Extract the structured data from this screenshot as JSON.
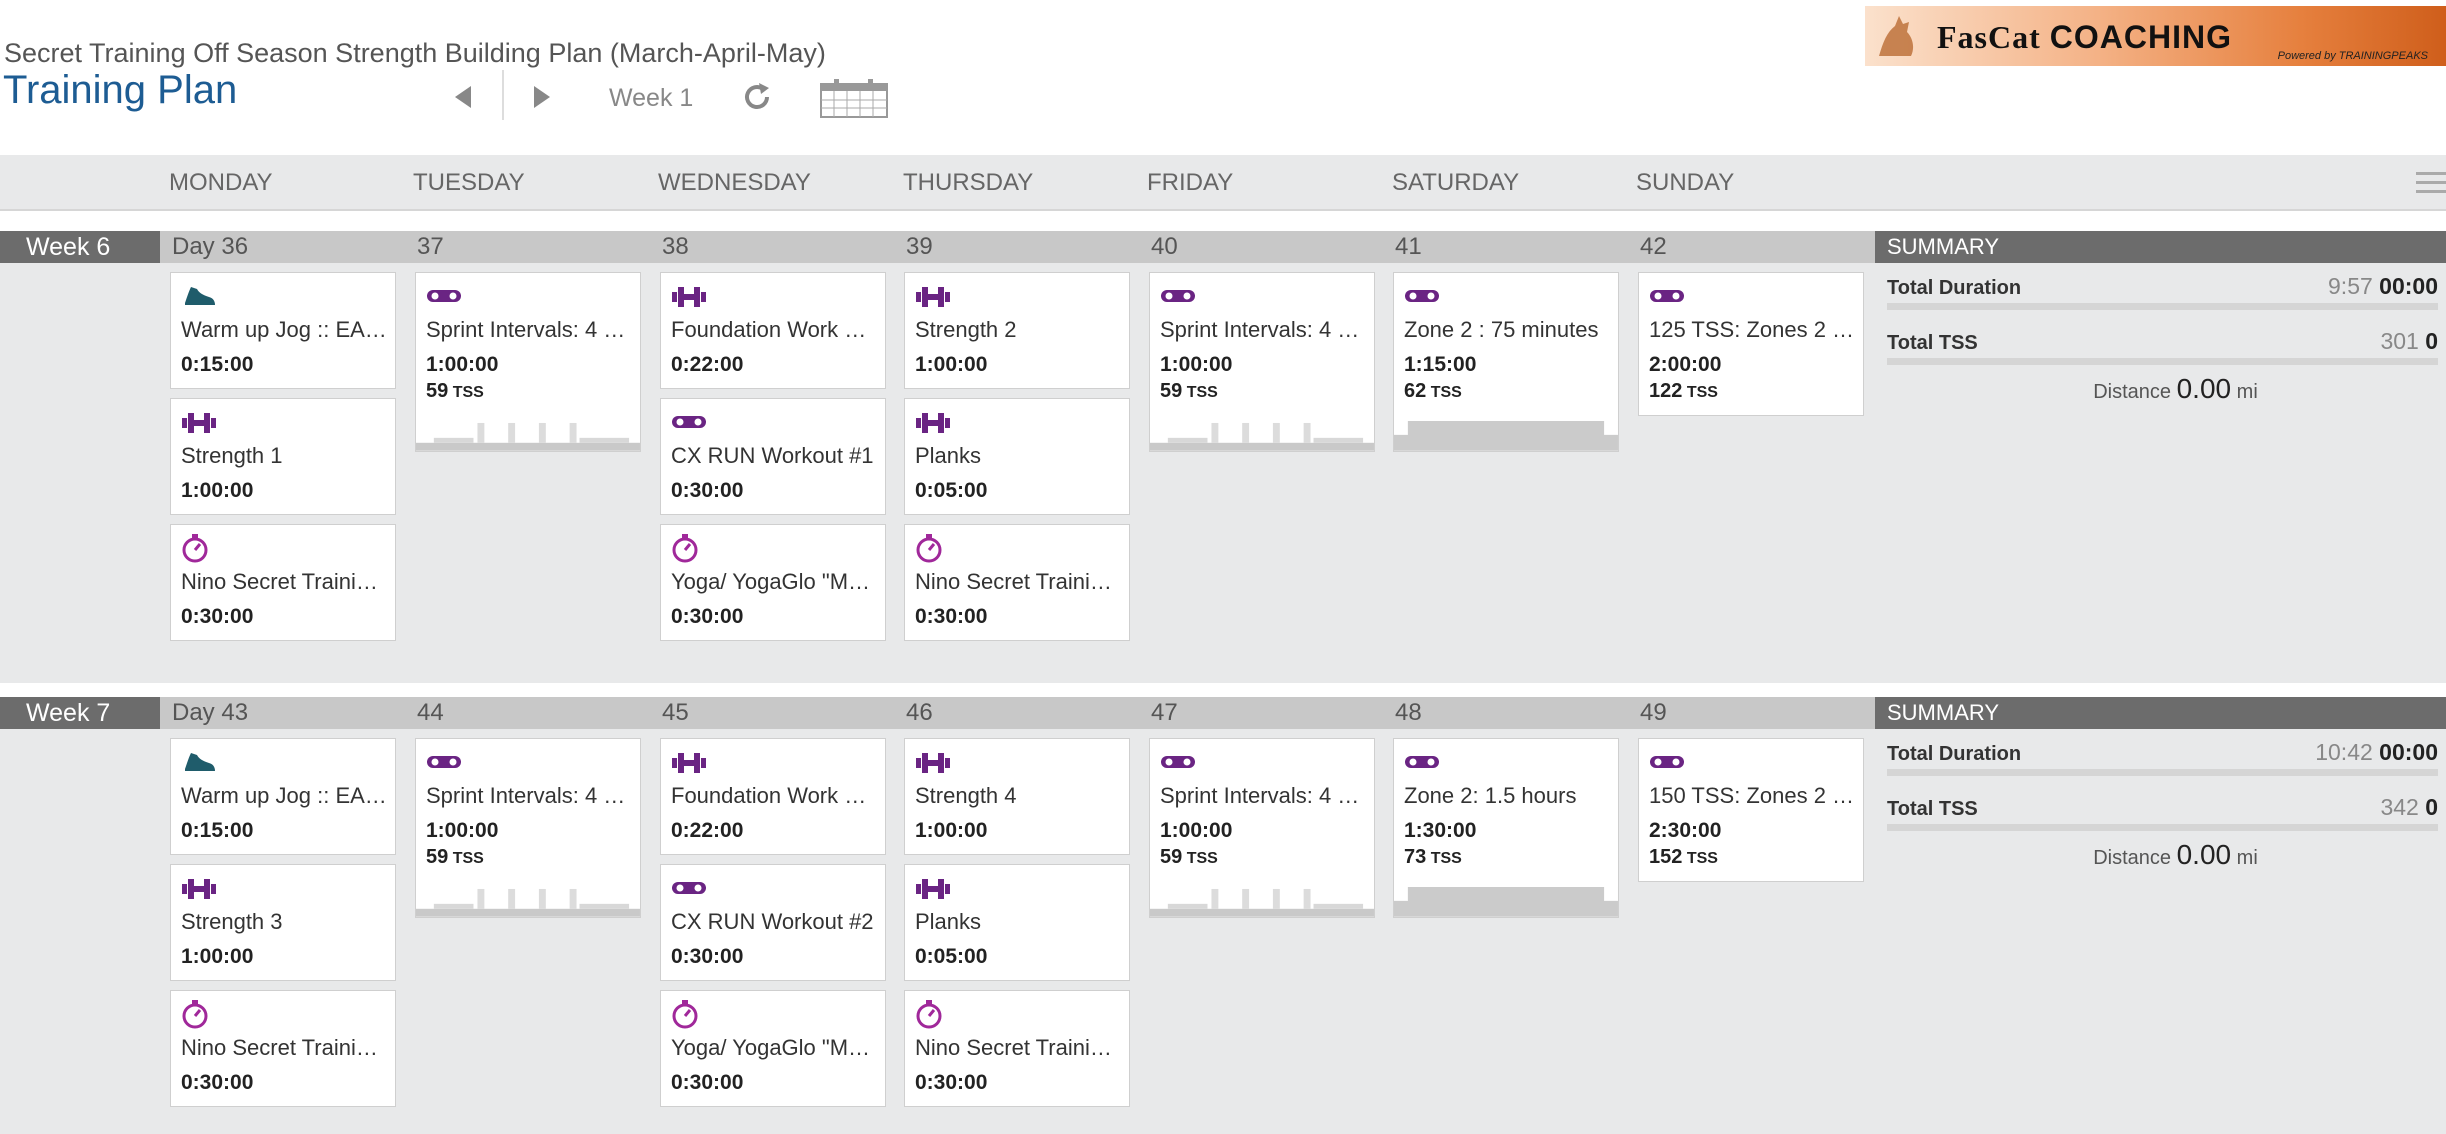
{
  "header": {
    "plan_name": "Secret Training Off Season Strength Building Plan (March-April-May)",
    "title": "Training Plan",
    "week_label": "Week 1"
  },
  "logo": {
    "brand": "FasCat",
    "word": "COACHING",
    "powered": "Powered by TRAININGPEAKS"
  },
  "days": [
    "MONDAY",
    "TUESDAY",
    "WEDNESDAY",
    "THURSDAY",
    "FRIDAY",
    "SATURDAY",
    "SUNDAY"
  ],
  "colors": {
    "accent": "#1d5c93",
    "bike": "#6a2483",
    "run": "#1f5c6b",
    "other": "#a0289a"
  },
  "weeks": [
    {
      "label": "Week 6",
      "day_numbers": [
        "Day 36",
        "37",
        "38",
        "39",
        "40",
        "41",
        "42"
      ],
      "workouts": [
        [
          {
            "icon": "run-shoe-icon",
            "title": "Warm up Jog :: EA…",
            "duration": "0:15:00"
          },
          {
            "icon": "dumbbell-icon",
            "title": "Strength 1",
            "duration": "1:00:00"
          },
          {
            "icon": "stopwatch-icon",
            "title": "Nino Secret Trainin…",
            "duration": "0:30:00"
          }
        ],
        [
          {
            "icon": "bike-icon",
            "title": "Sprint Intervals: 4 …",
            "duration": "1:00:00",
            "tss": "59",
            "profile": "intervals"
          }
        ],
        [
          {
            "icon": "dumbbell-icon",
            "title": "Foundation Work a…",
            "duration": "0:22:00"
          },
          {
            "icon": "bike-icon",
            "title": "CX RUN Workout #1",
            "duration": "0:30:00"
          },
          {
            "icon": "stopwatch-icon",
            "title": "Yoga/ YogaGlo \"M…",
            "duration": "0:30:00"
          }
        ],
        [
          {
            "icon": "dumbbell-icon",
            "title": "Strength 2",
            "duration": "1:00:00"
          },
          {
            "icon": "dumbbell-icon",
            "title": "Planks",
            "duration": "0:05:00"
          },
          {
            "icon": "stopwatch-icon",
            "title": "Nino Secret Trainin…",
            "duration": "0:30:00"
          }
        ],
        [
          {
            "icon": "bike-icon",
            "title": "Sprint Intervals: 4 …",
            "duration": "1:00:00",
            "tss": "59",
            "profile": "intervals"
          }
        ],
        [
          {
            "icon": "bike-icon",
            "title": "Zone 2 : 75 minutes",
            "duration": "1:15:00",
            "tss": "62",
            "profile": "steady"
          }
        ],
        [
          {
            "icon": "bike-icon",
            "title": "125 TSS: Zones 2 …",
            "duration": "2:00:00",
            "tss": "122"
          }
        ]
      ],
      "summary": {
        "heading": "SUMMARY",
        "duration_label": "Total Duration",
        "duration_planned": "9:57",
        "duration_done": "00:00",
        "tss_label": "Total TSS",
        "tss_planned": "301",
        "tss_done": "0",
        "distance_label": "Distance",
        "distance_value": "0.00",
        "distance_unit": "mi"
      }
    },
    {
      "label": "Week 7",
      "day_numbers": [
        "Day 43",
        "44",
        "45",
        "46",
        "47",
        "48",
        "49"
      ],
      "workouts": [
        [
          {
            "icon": "run-shoe-icon",
            "title": "Warm up Jog :: EA…",
            "duration": "0:15:00"
          },
          {
            "icon": "dumbbell-icon",
            "title": "Strength 3",
            "duration": "1:00:00"
          },
          {
            "icon": "stopwatch-icon",
            "title": "Nino Secret Trainin…",
            "duration": "0:30:00"
          }
        ],
        [
          {
            "icon": "bike-icon",
            "title": "Sprint Intervals: 4 …",
            "duration": "1:00:00",
            "tss": "59",
            "profile": "intervals"
          }
        ],
        [
          {
            "icon": "dumbbell-icon",
            "title": "Foundation Work a…",
            "duration": "0:22:00"
          },
          {
            "icon": "bike-icon",
            "title": "CX RUN Workout #2",
            "duration": "0:30:00"
          },
          {
            "icon": "stopwatch-icon",
            "title": "Yoga/ YogaGlo \"M…",
            "duration": "0:30:00"
          }
        ],
        [
          {
            "icon": "dumbbell-icon",
            "title": "Strength 4",
            "duration": "1:00:00"
          },
          {
            "icon": "dumbbell-icon",
            "title": "Planks",
            "duration": "0:05:00"
          },
          {
            "icon": "stopwatch-icon",
            "title": "Nino Secret Trainin…",
            "duration": "0:30:00"
          }
        ],
        [
          {
            "icon": "bike-icon",
            "title": "Sprint Intervals: 4 …",
            "duration": "1:00:00",
            "tss": "59",
            "profile": "intervals"
          }
        ],
        [
          {
            "icon": "bike-icon",
            "title": "Zone 2: 1.5 hours",
            "duration": "1:30:00",
            "tss": "73",
            "profile": "steady"
          }
        ],
        [
          {
            "icon": "bike-icon",
            "title": "150 TSS: Zones 2 …",
            "duration": "2:30:00",
            "tss": "152"
          }
        ]
      ],
      "summary": {
        "heading": "SUMMARY",
        "duration_label": "Total Duration",
        "duration_planned": "10:42",
        "duration_done": "00:00",
        "tss_label": "Total TSS",
        "tss_planned": "342",
        "tss_done": "0",
        "distance_label": "Distance",
        "distance_value": "0.00",
        "distance_unit": "mi"
      }
    }
  ]
}
